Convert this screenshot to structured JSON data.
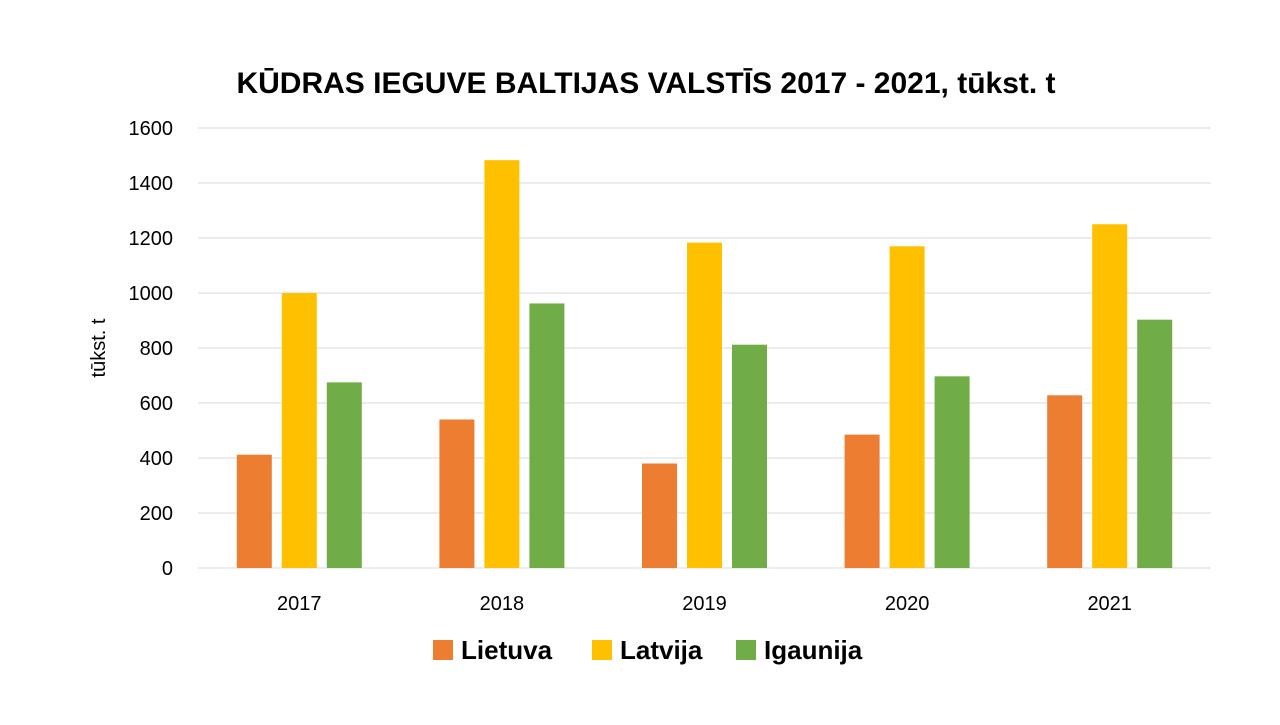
{
  "chart_data": {
    "type": "bar",
    "title": "KŪDRAS IEGUVE BALTIJAS VALSTĪS 2017 - 2021, tūkst. t",
    "xlabel": "",
    "ylabel": "tūkst. t",
    "categories": [
      "2017",
      "2018",
      "2019",
      "2020",
      "2021"
    ],
    "series": [
      {
        "name": "Lietuva",
        "color": "#ED7D31",
        "values": [
          412,
          540,
          380,
          485,
          628
        ]
      },
      {
        "name": "Latvija",
        "color": "#FFC000",
        "values": [
          1000,
          1483,
          1183,
          1170,
          1250
        ]
      },
      {
        "name": "Igaunija",
        "color": "#70AD47",
        "values": [
          675,
          962,
          812,
          697,
          903
        ]
      }
    ],
    "ylim": [
      0,
      1600
    ],
    "yticks": [
      "0",
      "200",
      "400",
      "600",
      "800",
      "1000",
      "1200",
      "1400",
      "1600"
    ],
    "grid": true,
    "legend_position": "bottom"
  }
}
